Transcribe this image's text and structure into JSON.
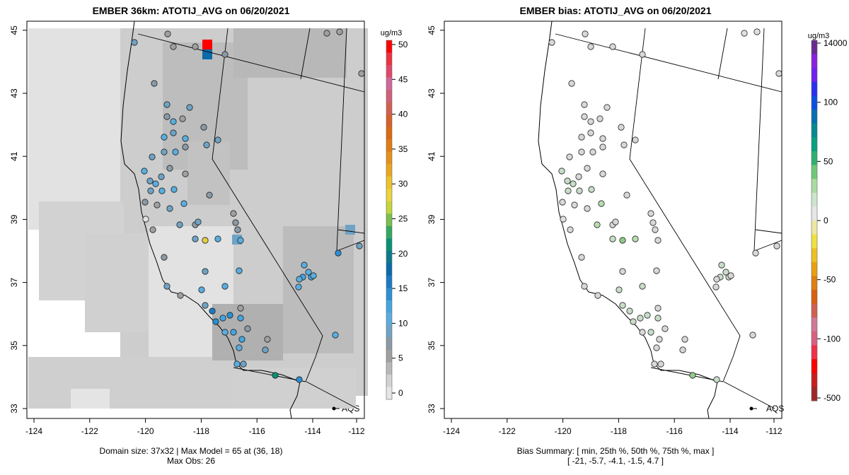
{
  "chart_data": [
    {
      "type": "heatmap",
      "title": "EMBER 36km: ATOTIJ_AVG on 06/20/2021",
      "x_ticks": [
        "-124",
        "-122",
        "-120",
        "-118",
        "-116",
        "-114",
        "-112"
      ],
      "y_ticks": [
        "33",
        "35",
        "37",
        "39",
        "41",
        "43",
        "45"
      ],
      "colorbar": {
        "unit": "ug/m3",
        "ticks": [
          "0",
          "5",
          "10",
          "15",
          "20",
          "25",
          "30",
          "35",
          "40",
          "45",
          "50"
        ],
        "range": [
          -1,
          51
        ],
        "colors": [
          "#e6e6e6",
          "#d2d2d2",
          "#b8b8b8",
          "#a0a0a0",
          "#8a9aa6",
          "#6fa3c5",
          "#5aaedf",
          "#43a6e0",
          "#2b8fd4",
          "#1a7ac4",
          "#0a6aa8",
          "#0a7a8c",
          "#089275",
          "#34a860",
          "#7cbf4c",
          "#c3d63c",
          "#ecd43a",
          "#efc12a",
          "#eba71c",
          "#e6921a",
          "#e27c10",
          "#dc6a10",
          "#d5612a",
          "#d26050",
          "#d0607a",
          "#d06898",
          "#e04868",
          "#f03040",
          "#ff0000"
        ]
      },
      "annotation": "AQS",
      "footer": [
        "Domain size: 37x32 | Max Model = 65 at (36, 18)",
        "Max Obs: 26"
      ]
    },
    {
      "type": "scatter",
      "title": "EMBER bias: ATOTIJ_AVG on 06/20/2021",
      "x_ticks": [
        "-124",
        "-122",
        "-120",
        "-118",
        "-116",
        "-114",
        "-112"
      ],
      "y_ticks": [
        "33",
        "35",
        "37",
        "39",
        "41",
        "43",
        "45"
      ],
      "colorbar": {
        "unit": "ug/m3",
        "ticks": [
          "14000",
          "100",
          "50",
          "0",
          "-50",
          "-100",
          "-500"
        ],
        "colors": [
          "#a02828",
          "#c81e1e",
          "#ff0000",
          "#f03048",
          "#d86080",
          "#d07898",
          "#d06050",
          "#d86010",
          "#e08010",
          "#e8a010",
          "#f0c020",
          "#f0e040",
          "#ece8a0",
          "#e6e6e6",
          "#cce4cc",
          "#a8dca0",
          "#70c878",
          "#30b070",
          "#08a080",
          "#088890",
          "#0670b0",
          "#0a50e0",
          "#2a30f0",
          "#7020f0",
          "#8a20e0",
          "#6a2a90"
        ]
      },
      "annotation": "AQS",
      "footer": [
        "Bias Summary: [ min, 25th %, 50th %, 75th %, max ]",
        "[ -21,   -5.7,   -4.1,   -1.5,   4.7 ]"
      ],
      "summary": {
        "min": -21,
        "p25": -5.7,
        "p50": -4.1,
        "p75": -1.5,
        "max": 4.7
      }
    }
  ]
}
